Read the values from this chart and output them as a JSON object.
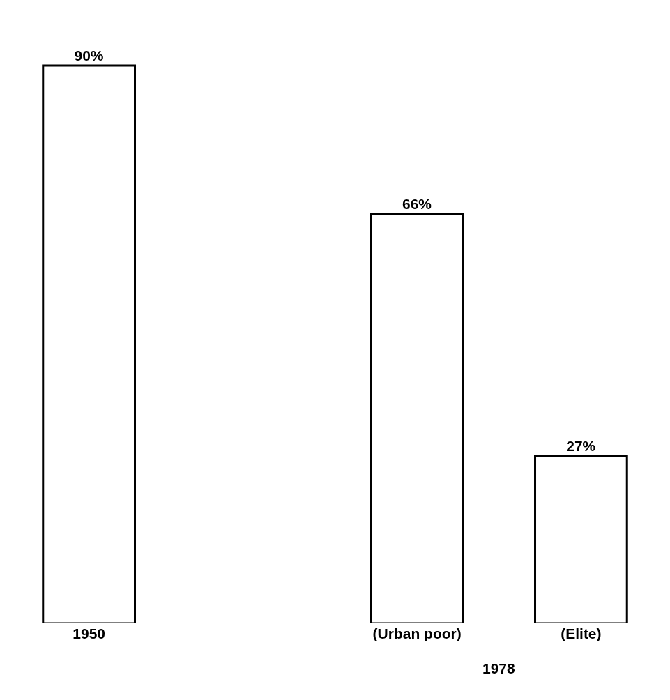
{
  "chart_data": {
    "type": "bar",
    "categories": [
      "1950",
      null,
      "(Urban poor)",
      "(Elite)"
    ],
    "values": [
      90,
      null,
      66,
      27
    ],
    "value_labels": [
      "90%",
      null,
      "66%",
      "27%"
    ],
    "color": "#ffffff",
    "annotations": [
      "1978"
    ],
    "tick_labels": "x"
  }
}
